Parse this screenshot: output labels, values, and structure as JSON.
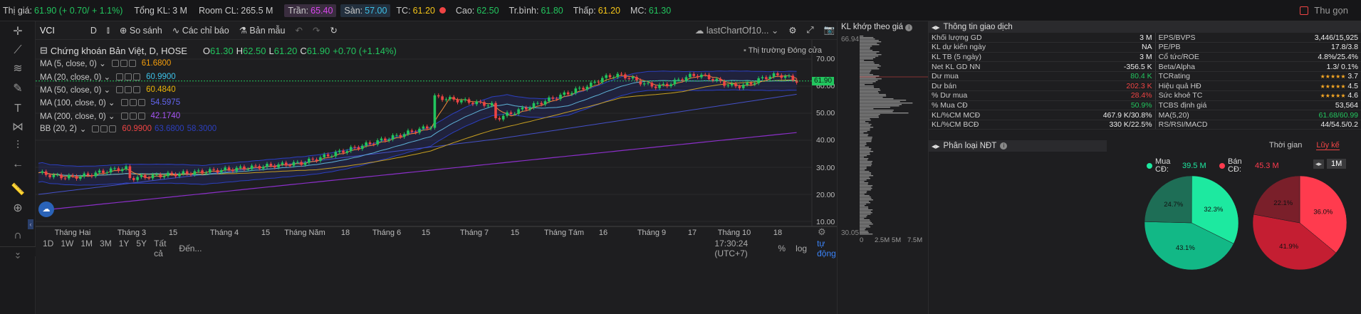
{
  "topbar": {
    "price_label": "Thị giá:",
    "price_value": "61.90 (+ 0.70/ + 1.1%)",
    "vol_label": "Tổng KL:",
    "vol_value": "3 M",
    "room_label": "Room CL:",
    "room_value": "265.5 M",
    "tran_label": "Trần:",
    "tran_value": "65.40",
    "san_label": "Sàn:",
    "san_value": "57.00",
    "tc_label": "TC:",
    "tc_value": "61.20",
    "cao_label": "Cao:",
    "cao_value": "62.50",
    "trbinh_label": "Tr.bình:",
    "trbinh_value": "61.80",
    "thap_label": "Thấp:",
    "thap_value": "61.20",
    "mc_label": "MC:",
    "mc_value": "61.30",
    "collapse": "Thu gọn"
  },
  "toolbar": {
    "symbol": "VCI",
    "interval": "D",
    "compare": "So sánh",
    "indicators": "Các chỉ báo",
    "templates": "Bản mẫu",
    "layout_name": "lastChartOf10..."
  },
  "legend": {
    "title": "Chứng khoán Bản Việt, D, HOSE",
    "o_label": "O",
    "o": "61.30",
    "h_label": "H",
    "h": "62.50",
    "l_label": "L",
    "l": "61.20",
    "c_label": "C",
    "c": "61.90",
    "chg": "+0.70 (+1.14%)",
    "market_status": "Thị trường Đóng cửa",
    "studies": [
      {
        "name": "MA (5, close, 0)",
        "value": "61.6800",
        "color": "#f59e0b"
      },
      {
        "name": "MA (20, close, 0)",
        "value": "60.9900",
        "color": "#3dc1e8"
      },
      {
        "name": "MA (50, close, 0)",
        "value": "60.4840",
        "color": "#eab308"
      },
      {
        "name": "MA (100, close, 0)",
        "value": "54.5975",
        "color": "#6366f1"
      },
      {
        "name": "MA (200, close, 0)",
        "value": "42.1740",
        "color": "#a855f7"
      }
    ],
    "bb": {
      "name": "BB (20, 2)",
      "v1": "60.9900",
      "v2": "63.6800",
      "v3": "58.3000"
    }
  },
  "yaxis": [
    "70.00",
    "60.00",
    "50.00",
    "40.00",
    "30.00",
    "20.00",
    "10.00"
  ],
  "price_tag": "61.90",
  "xaxis": [
    "Tháng Hai",
    "Tháng 3",
    "15",
    "Tháng 4",
    "15",
    "Tháng Năm",
    "18",
    "Tháng 6",
    "15",
    "Tháng 7",
    "15",
    "Tháng Tám",
    "16",
    "Tháng 9",
    "17",
    "Tháng 10",
    "18"
  ],
  "bottombar": {
    "ranges": [
      "1D",
      "1W",
      "1M",
      "3M",
      "1Y",
      "5Y",
      "Tất cả"
    ],
    "goto": "Đến...",
    "time": "17:30:24 (UTC+7)",
    "pct": "%",
    "log": "log",
    "auto": "tự động"
  },
  "kl": {
    "title": "KL khớp theo giá",
    "max": "66.94",
    "min": "30.05",
    "ticks": [
      "0",
      "2.5M",
      "5M",
      "7.5M"
    ]
  },
  "info": {
    "title": "Thông tin giao dịch",
    "rows": [
      [
        "Khối lượng GD",
        "3 M",
        "EPS/BVPS",
        "3,446/15,925"
      ],
      [
        "KL dự kiến ngày",
        "NA",
        "PE/PB",
        "17.8/3.8"
      ],
      [
        "KL TB (5 ngày)",
        "3 M",
        "Cổ tức/ROE",
        "4.8%/25.4%"
      ],
      [
        "Net KL GD NN",
        "-356.5 K",
        "Beta/Alpha",
        "1.3/ 0.1%"
      ],
      [
        "Dư mua",
        "80.4 K",
        "TCRating",
        "★★★★★ 3.7"
      ],
      [
        "Dư bán",
        "202.3 K",
        "Hiệu quả HĐ",
        "★★★★★ 4.5"
      ],
      [
        "% Dư mua",
        "28.4%",
        "Sức khoẻ TC",
        "★★★★★ 4.6"
      ],
      [
        "% Mua CĐ",
        "50.9%",
        "TCBS định giá",
        "53,564"
      ],
      [
        "KL/%CM MCĐ",
        "467.9 K/30.8%",
        "MA(5,20)",
        "61.68/60.99"
      ],
      [
        "KL/%CM BCĐ",
        "330 K/22.5%",
        "RS/RSI/MACD",
        "44/54.5/0.2"
      ]
    ]
  },
  "ndt": {
    "title": "Phân loại NĐT",
    "tab_time": "Thời gian",
    "tab_cum": "Lũy kế",
    "buy_label": "Mua CĐ:",
    "buy_value": "39.5 M",
    "sell_label": "Bán CĐ:",
    "sell_value": "45.3 M",
    "period": "1M",
    "buy_pie": [
      {
        "label": "32.3%",
        "value": 32.3,
        "color": "#1de9a0"
      },
      {
        "label": "43.1%",
        "value": 43.1,
        "color": "#12b886"
      },
      {
        "label": "24.7%",
        "value": 24.7,
        "color": "#1e6e56"
      }
    ],
    "sell_pie": [
      {
        "label": "36.0%",
        "value": 36.0,
        "color": "#ff3b4e"
      },
      {
        "label": "41.9%",
        "value": 41.9,
        "color": "#c41e32"
      },
      {
        "label": "22.1%",
        "value": 22.1,
        "color": "#7a1f2a"
      }
    ]
  },
  "colors": {
    "up": "#22c55e",
    "down": "#ef4444",
    "bg": "#1e1e20"
  }
}
